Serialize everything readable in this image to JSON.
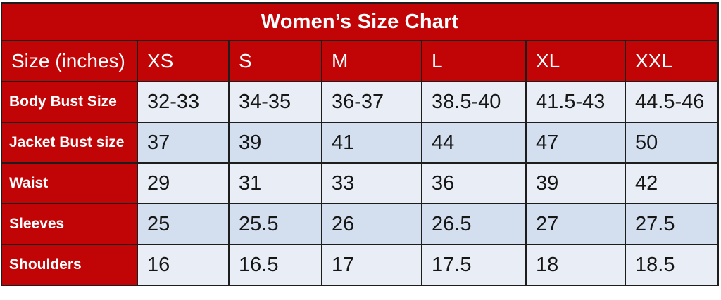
{
  "title": "Women’s Size Chart",
  "table": {
    "corner_label": "Size (inches)",
    "size_headers": [
      "XS",
      "S",
      "M",
      "L",
      "XL",
      "XXL"
    ],
    "rows": [
      {
        "label": "Body Bust Size",
        "values": [
          "32-33",
          "34-35",
          "36-37",
          "38.5-40",
          "41.5-43",
          "44.5-46"
        ]
      },
      {
        "label": "Jacket Bust size",
        "values": [
          "37",
          "39",
          "41",
          "44",
          "47",
          "50"
        ]
      },
      {
        "label": "Waist",
        "values": [
          "29",
          "31",
          "33",
          "36",
          "39",
          "42"
        ]
      },
      {
        "label": "Sleeves",
        "values": [
          "25",
          "25.5",
          "26",
          "26.5",
          "27",
          "27.5"
        ]
      },
      {
        "label": "Shoulders",
        "values": [
          "16",
          "16.5",
          "17",
          "17.5",
          "18",
          "18.5"
        ]
      }
    ]
  },
  "colors": {
    "accent_red": "#c10507",
    "band_light": "#e9eef6",
    "band_dark": "#d3deef",
    "border": "#1d1d1d",
    "header_text": "#ffffff",
    "data_text": "#161616"
  },
  "chart_data": {
    "type": "table",
    "title": "Women’s Size Chart",
    "columns": [
      "Size (inches)",
      "XS",
      "S",
      "M",
      "L",
      "XL",
      "XXL"
    ],
    "rows": [
      [
        "Body Bust Size",
        "32-33",
        "34-35",
        "36-37",
        "38.5-40",
        "41.5-43",
        "44.5-46"
      ],
      [
        "Jacket Bust size",
        "37",
        "39",
        "41",
        "44",
        "47",
        "50"
      ],
      [
        "Waist",
        "29",
        "31",
        "33",
        "36",
        "39",
        "42"
      ],
      [
        "Sleeves",
        "25",
        "25.5",
        "26",
        "26.5",
        "27",
        "27.5"
      ],
      [
        "Shoulders",
        "16",
        "16.5",
        "17",
        "17.5",
        "18",
        "18.5"
      ]
    ],
    "layout": {
      "banded_rows": true,
      "header_fill": "#c10507",
      "band_colors": [
        "#e9eef6",
        "#d3deef"
      ]
    }
  }
}
